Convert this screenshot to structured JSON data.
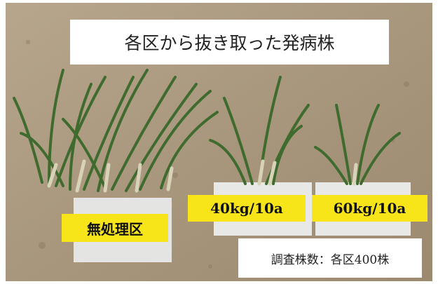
{
  "title": "各区から抜き取った発病株",
  "labels": [
    "無処理区",
    "40kg/10a",
    "60kg/10a"
  ],
  "note": "調査株数：各区400株"
}
